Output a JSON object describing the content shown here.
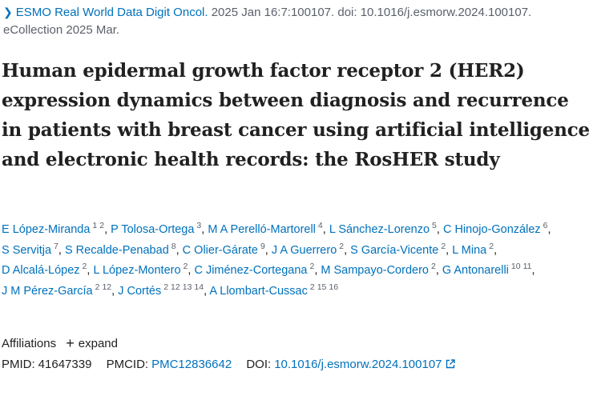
{
  "journal": {
    "name": "ESMO Real World Data Digit Oncol.",
    "citation": "2025 Jan 16:7:100107. doi: 10.1016/j.esmorw.2024.100107.",
    "ecollection": "eCollection 2025 Mar."
  },
  "title": "Human epidermal growth factor receptor 2 (HER2) expression dynamics between diagnosis and recurrence in patients with breast cancer using artificial intelligence and electronic health records: the RosHER study",
  "authors": [
    {
      "name": "E López-Miranda",
      "affils": [
        "1",
        "2"
      ]
    },
    {
      "name": "P Tolosa-Ortega",
      "affils": [
        "3"
      ]
    },
    {
      "name": "M A Perelló-Martorell",
      "affils": [
        "4"
      ]
    },
    {
      "name": "L Sánchez-Lorenzo",
      "affils": [
        "5"
      ]
    },
    {
      "name": "C Hinojo-González",
      "affils": [
        "6"
      ]
    },
    {
      "name": "S Servitja",
      "affils": [
        "7"
      ]
    },
    {
      "name": "S Recalde-Penabad",
      "affils": [
        "8"
      ]
    },
    {
      "name": "C Olier-Gárate",
      "affils": [
        "9"
      ]
    },
    {
      "name": "J A Guerrero",
      "affils": [
        "2"
      ]
    },
    {
      "name": "S García-Vicente",
      "affils": [
        "2"
      ]
    },
    {
      "name": "L Mina",
      "affils": [
        "2"
      ]
    },
    {
      "name": "D Alcalá-López",
      "affils": [
        "2"
      ]
    },
    {
      "name": "L López-Montero",
      "affils": [
        "2"
      ]
    },
    {
      "name": "C Jiménez-Cortegana",
      "affils": [
        "2"
      ]
    },
    {
      "name": "M Sampayo-Cordero",
      "affils": [
        "2"
      ]
    },
    {
      "name": "G Antonarelli",
      "affils": [
        "10",
        "11"
      ]
    },
    {
      "name": "J M Pérez-García",
      "affils": [
        "2",
        "12"
      ]
    },
    {
      "name": "J Cortés",
      "affils": [
        "2",
        "12",
        "13",
        "14"
      ]
    },
    {
      "name": "A Llombart-Cussac",
      "affils": [
        "2",
        "15",
        "16"
      ]
    }
  ],
  "affiliations": {
    "label": "Affiliations",
    "expand_label": "expand"
  },
  "ids": {
    "pmid_label": "PMID:",
    "pmid": "41647339",
    "pmcid_label": "PMCID:",
    "pmcid": "PMC12836642",
    "doi_label": "DOI:",
    "doi": "10.1016/j.esmorw.2024.100107"
  },
  "colors": {
    "link": "#0071bc",
    "muted": "#5b616b",
    "text": "#212121"
  }
}
